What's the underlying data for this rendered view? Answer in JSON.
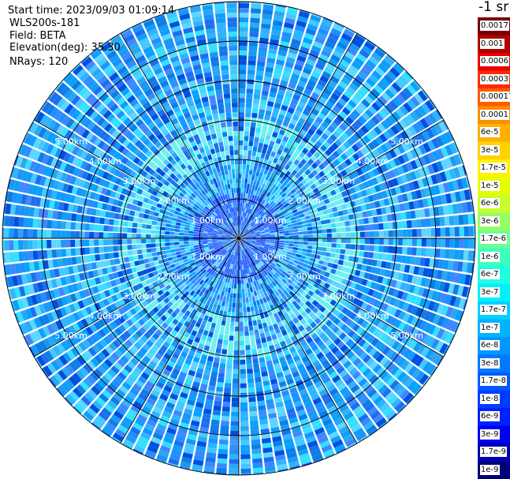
{
  "header": {
    "start_time": "Start time: 2023/09/03 01:09:14",
    "instrument": "WLS200s-181",
    "field": "Field: BETA",
    "elevation": "Elevation(deg): 35.30",
    "nrays": "NRays: 120"
  },
  "colorbar": {
    "unit": "-1 sr",
    "labels": [
      "0.0017",
      "0.001",
      "0.0006",
      "0.0003",
      "0.00017",
      "0.0001",
      "6e-5",
      "3e-5",
      "1.7e-5",
      "1e-5",
      "6e-6",
      "3e-6",
      "1.7e-6",
      "1e-6",
      "6e-7",
      "3e-7",
      "1.7e-7",
      "1e-7",
      "6e-8",
      "3e-8",
      "1.7e-8",
      "1e-8",
      "6e-9",
      "3e-9",
      "1.7e-9",
      "1e-9"
    ],
    "colors": [
      "#7a0000",
      "#b30000",
      "#e60000",
      "#ff2a00",
      "#ff5a00",
      "#ff8c00",
      "#ffb000",
      "#ffd200",
      "#fff000",
      "#e6ff00",
      "#c8ff2a",
      "#96ff64",
      "#6cff96",
      "#3cffbe",
      "#20ffe0",
      "#00f0ff",
      "#00d0ff",
      "#00b4ff",
      "#0096ff",
      "#0078ff",
      "#005aff",
      "#003cff",
      "#0020ff",
      "#0000f0",
      "#0000b4",
      "#000078"
    ]
  },
  "chart_data": {
    "type": "heatmap",
    "projection": "polar (PPI scan)",
    "field": "BETA",
    "elevation_deg": 35.3,
    "nrays": 120,
    "range_rings_km": [
      1,
      2,
      3,
      4,
      5
    ],
    "ring_labels": [
      "1.00km",
      "2.00km",
      "3.00km",
      "4.00km",
      "5.00km"
    ],
    "max_range_km": 6.0,
    "radial_spokes_deg": [
      0,
      30,
      60,
      90,
      120,
      150,
      180,
      210,
      240,
      270,
      300,
      330
    ],
    "label_bearings_deg": [
      300,
      60,
      240,
      120
    ],
    "color_scale": "log",
    "value_range": [
      1e-09,
      0.0017
    ],
    "dominant_value_range": [
      6e-09,
      1e-07
    ]
  }
}
